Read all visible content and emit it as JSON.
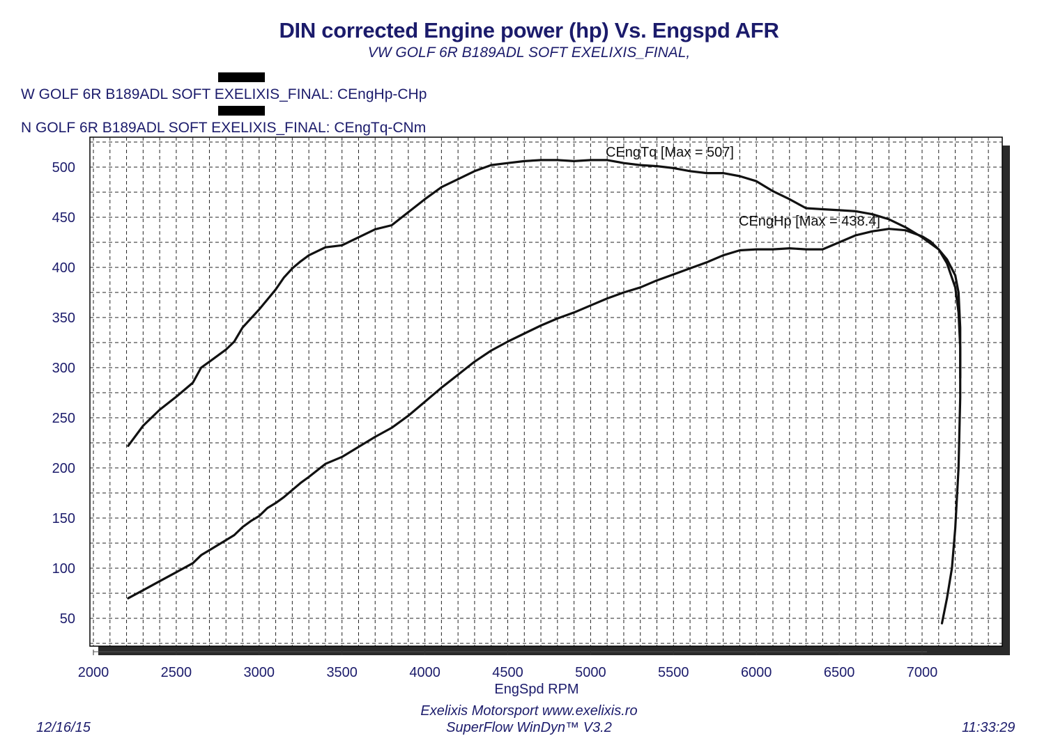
{
  "chart_data": {
    "type": "line",
    "title": "DIN corrected Engine power (hp) Vs. Engspd AFR",
    "subtitle": "VW GOLF 6R B189ADL SOFT EXELIXIS_FINAL,",
    "xlabel": "EngSpd RPM",
    "ylabel": "",
    "xlim": [
      2000,
      7500
    ],
    "ylim": [
      25,
      530
    ],
    "xticks": [
      2000,
      2500,
      3000,
      3500,
      4000,
      4500,
      5000,
      5500,
      6000,
      6500,
      7000
    ],
    "yticks": [
      50,
      100,
      150,
      200,
      250,
      300,
      350,
      400,
      450,
      500
    ],
    "grid": true,
    "legend": [
      "W GOLF 6R B189ADL SOFT EXELIXIS_FINAL: CEngHp-CHp",
      "N GOLF 6R B189ADL SOFT EXELIXIS_FINAL: CEngTq-CNm"
    ],
    "annotations": {
      "torque_max": "CEngTq [Max = 507]",
      "power_max": "CEngHp [Max = 438.4]"
    },
    "series": [
      {
        "name": "CEngHp-CHp",
        "x": [
          2210,
          2300,
          2400,
          2500,
          2600,
          2650,
          2700,
          2800,
          2850,
          2900,
          2950,
          3000,
          3050,
          3100,
          3150,
          3200,
          3250,
          3300,
          3400,
          3500,
          3600,
          3700,
          3800,
          3900,
          4000,
          4100,
          4200,
          4300,
          4400,
          4500,
          4600,
          4700,
          4800,
          4900,
          5000,
          5100,
          5200,
          5300,
          5400,
          5500,
          5600,
          5700,
          5800,
          5900,
          6000,
          6100,
          6200,
          6300,
          6400,
          6500,
          6600,
          6700,
          6800,
          6900,
          7000,
          7050,
          7100,
          7150,
          7200,
          7220,
          7230,
          7230,
          7220,
          7200,
          7180,
          7150,
          7120
        ],
        "y": [
          70,
          78,
          87,
          96,
          105,
          113,
          118,
          128,
          133,
          141,
          147,
          152,
          160,
          165,
          171,
          178,
          185,
          191,
          204,
          211,
          221,
          231,
          240,
          252,
          266,
          280,
          293,
          306,
          317,
          326,
          334,
          342,
          349,
          355,
          362,
          369,
          375,
          380,
          387,
          393,
          399,
          405,
          412,
          417,
          418,
          418,
          419,
          418,
          418,
          425,
          432,
          436,
          438.4,
          437,
          431,
          426,
          418,
          404,
          380,
          355,
          320,
          270,
          200,
          140,
          100,
          70,
          45
        ]
      },
      {
        "name": "CEngTq-CNm",
        "x": [
          2210,
          2300,
          2400,
          2500,
          2600,
          2650,
          2700,
          2800,
          2850,
          2900,
          2950,
          3000,
          3050,
          3100,
          3150,
          3200,
          3250,
          3300,
          3400,
          3500,
          3600,
          3700,
          3800,
          3900,
          4000,
          4100,
          4200,
          4300,
          4400,
          4500,
          4600,
          4700,
          4800,
          4900,
          5000,
          5100,
          5200,
          5300,
          5400,
          5500,
          5600,
          5700,
          5800,
          5900,
          6000,
          6100,
          6200,
          6300,
          6400,
          6500,
          6600,
          6700,
          6800,
          6900,
          7000,
          7050,
          7100,
          7150,
          7200,
          7220,
          7230,
          7230
        ],
        "y": [
          222,
          242,
          258,
          271,
          285,
          300,
          306,
          318,
          326,
          340,
          349,
          358,
          368,
          378,
          390,
          399,
          406,
          412,
          420,
          422,
          430,
          438,
          442,
          455,
          468,
          480,
          488,
          496,
          502,
          504,
          506,
          507,
          507,
          506,
          507,
          507,
          504,
          502,
          501,
          499,
          496,
          494,
          494,
          491,
          486,
          476,
          468,
          459,
          458,
          457,
          456,
          453,
          448,
          440,
          430,
          424,
          418,
          408,
          392,
          375,
          340,
          290
        ]
      }
    ]
  },
  "footer": {
    "date": "12/16/15",
    "time": "11:33:29",
    "company": "Exelixis Motorsport www.exelixis.ro",
    "software": "SuperFlow WinDyn™ V3.2"
  }
}
